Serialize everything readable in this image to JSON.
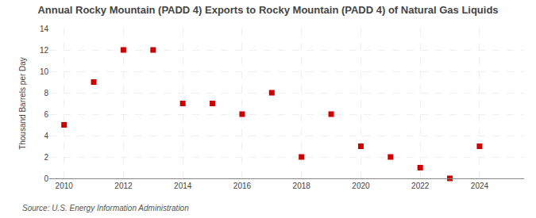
{
  "chart_data": {
    "type": "scatter",
    "title": "Annual Rocky Mountain (PADD 4) Exports to Rocky Mountain (PADD 4) of Natural Gas Liquids",
    "y_label": "Thousand Barrels per Day",
    "annotations": [
      "Source: U.S. Energy Information Administration"
    ],
    "x": [
      2010,
      2011,
      2012,
      2013,
      2014,
      2015,
      2016,
      2017,
      2018,
      2019,
      2020,
      2021,
      2022,
      2023,
      2024
    ],
    "values": [
      5,
      9,
      12,
      12,
      7,
      7,
      6,
      8,
      2,
      6,
      3,
      2,
      1,
      0,
      3
    ],
    "color": "#cc0000",
    "marker": "square",
    "xlim": [
      2009.5,
      2025.5
    ],
    "ylim": [
      0,
      14
    ],
    "xticks": [
      2010,
      2012,
      2014,
      2016,
      2018,
      2020,
      2022,
      2024
    ],
    "yticks": [
      0,
      2,
      4,
      6,
      8,
      10,
      12,
      14
    ],
    "grid": true
  }
}
